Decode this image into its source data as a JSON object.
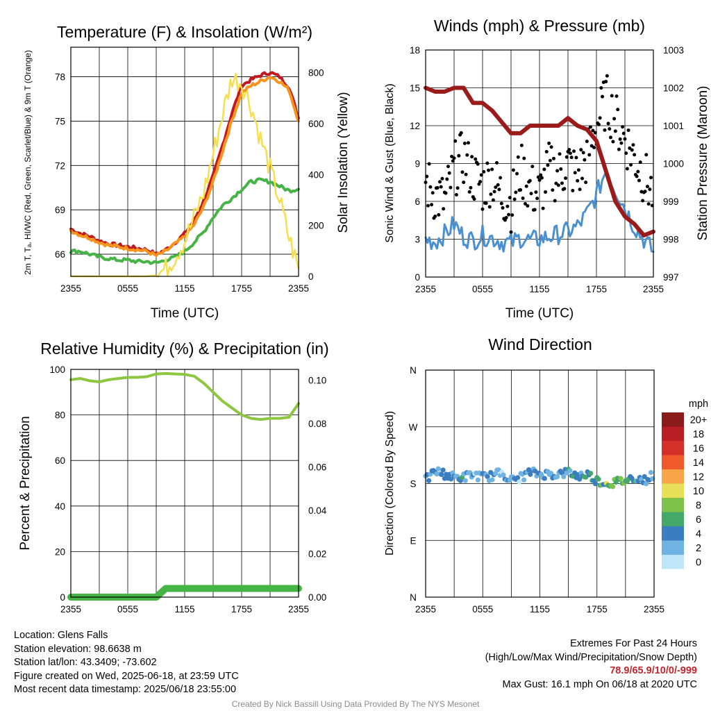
{
  "panels": {
    "temp": {
      "title": "Temperature (F) & Insolation (W/m²)",
      "ylabel": "2m T, Tₐ, HI/WC (Red, Green, Scarlet/Blue) & 9m T (Orange)",
      "y2label": "Solar Insolation (Yellow)",
      "xlabel": "Time (UTC)"
    },
    "wind": {
      "title": "Winds (mph) & Pressure (mb)",
      "ylabel": "Sonic Wind & Gust (Blue, Black)",
      "y2label": "Station Pressure (Maroon)",
      "xlabel": "Time (UTC)"
    },
    "rh": {
      "title": "Relative Humidity (%) & Precipitation (in)",
      "ylabel": "Percent & Precipitation"
    },
    "dir": {
      "title": "Wind Direction",
      "ylabel": "Direction (Colored By Speed)"
    }
  },
  "x_ticks": [
    "2355",
    "0555",
    "1155",
    "1755",
    "2355"
  ],
  "chart_data": [
    {
      "type": "line",
      "title": "Temperature (F) & Insolation (W/m2)",
      "xlabel": "Time (UTC)",
      "x": [
        0,
        1,
        2,
        3,
        4,
        5,
        6,
        7,
        8,
        9,
        10,
        11,
        12,
        13,
        14,
        15,
        16,
        17,
        18,
        19,
        20,
        21,
        22,
        23,
        24
      ],
      "ylim": [
        64.5,
        80.0
      ],
      "y_ticks": [
        66,
        69,
        72,
        75,
        78
      ],
      "y2lim": [
        0,
        900
      ],
      "y2_ticks": [
        0,
        200,
        400,
        600,
        800
      ],
      "series": [
        {
          "name": "2m T",
          "color": "#c01a1f",
          "values": [
            67.7,
            67.4,
            67.2,
            66.9,
            66.7,
            66.6,
            66.5,
            66.4,
            66.3,
            66.0,
            66.3,
            66.8,
            67.4,
            68.3,
            69.6,
            71.3,
            73.4,
            75.6,
            77.4,
            77.8,
            78.1,
            78.3,
            78.0,
            77.3,
            75.2
          ]
        },
        {
          "name": "9m T",
          "color": "#f7941d",
          "values": [
            67.6,
            67.3,
            67.1,
            66.8,
            66.6,
            66.5,
            66.4,
            66.3,
            66.2,
            65.9,
            66.2,
            66.7,
            67.2,
            68.0,
            69.2,
            70.9,
            73.0,
            75.1,
            76.9,
            77.4,
            77.7,
            78.0,
            77.7,
            77.1,
            75.0
          ]
        },
        {
          "name": "Td",
          "color": "#45b445",
          "values": [
            66.2,
            66.2,
            66.0,
            65.8,
            65.7,
            65.6,
            65.6,
            65.5,
            65.5,
            65.4,
            65.6,
            65.8,
            66.2,
            66.8,
            67.5,
            68.5,
            69.3,
            69.8,
            70.4,
            70.9,
            71.0,
            70.9,
            70.6,
            70.3,
            70.4
          ]
        },
        {
          "name": "Solar",
          "axis": "y2",
          "color": "#f6df4e",
          "values": [
            0,
            0,
            0,
            0,
            0,
            0,
            0,
            0,
            0,
            5,
            30,
            80,
            140,
            230,
            330,
            480,
            640,
            780,
            760,
            670,
            540,
            420,
            300,
            150,
            30
          ]
        }
      ]
    },
    {
      "type": "line",
      "title": "Winds (mph) & Pressure (mb)",
      "xlabel": "Time (UTC)",
      "x": [
        0,
        1,
        2,
        3,
        4,
        5,
        6,
        7,
        8,
        9,
        10,
        11,
        12,
        13,
        14,
        15,
        16,
        17,
        18,
        19,
        20,
        21,
        22,
        23,
        24
      ],
      "ylim": [
        0,
        18
      ],
      "y_ticks": [
        0,
        3,
        6,
        9,
        12,
        15,
        18
      ],
      "y2lim": [
        997,
        1003
      ],
      "y2_ticks": [
        997,
        998,
        999,
        1000,
        1001,
        1002,
        1003
      ],
      "series": [
        {
          "name": "Sonic Wind",
          "color": "#4a90d0",
          "values": [
            3.0,
            2.8,
            3.4,
            4.2,
            3.2,
            2.9,
            3.3,
            3.1,
            2.8,
            2.7,
            3.1,
            2.9,
            3.0,
            3.2,
            3.4,
            3.6,
            4.0,
            5.0,
            6.5,
            8.5,
            7.0,
            5.5,
            4.0,
            3.0,
            2.0
          ]
        },
        {
          "name": "Gust",
          "color": "#000000",
          "values": [
            7.5,
            6.5,
            6.0,
            8.5,
            9.5,
            8.0,
            7.2,
            8.0,
            6.5,
            5.8,
            8.5,
            7.0,
            6.5,
            8.5,
            8.0,
            9.0,
            8.0,
            9.5,
            12.0,
            14.0,
            12.5,
            11.0,
            9.5,
            8.0,
            6.5
          ]
        },
        {
          "name": "Pressure",
          "axis": "y2",
          "color": "#9b1b1b",
          "values": [
            1002.0,
            1001.9,
            1001.9,
            1002.0,
            1002.0,
            1001.6,
            1001.6,
            1001.4,
            1001.1,
            1000.8,
            1000.8,
            1001.0,
            1001.0,
            1001.0,
            1001.0,
            1001.2,
            1001.0,
            1000.9,
            1000.6,
            999.8,
            999.0,
            998.6,
            998.4,
            998.1,
            998.2
          ]
        }
      ]
    },
    {
      "type": "line",
      "title": "Relative Humidity (%) & Precipitation (in)",
      "xlabel": "",
      "x": [
        0,
        1,
        2,
        3,
        4,
        5,
        6,
        7,
        8,
        9,
        10,
        11,
        12,
        13,
        14,
        15,
        16,
        17,
        18,
        19,
        20,
        21,
        22,
        23,
        24
      ],
      "ylim": [
        0,
        100
      ],
      "y_ticks": [
        0,
        20,
        40,
        60,
        80,
        100
      ],
      "y2lim": [
        0,
        0.105
      ],
      "y2_ticks": [
        "0.00",
        "0.02",
        "0.04",
        "0.06",
        "0.08",
        "0.10"
      ],
      "series": [
        {
          "name": "RH",
          "color": "#8dc63f",
          "values": [
            95.5,
            96.0,
            95.0,
            94.5,
            95.5,
            96.0,
            96.5,
            96.5,
            96.8,
            98.0,
            98.2,
            98.0,
            97.8,
            97.0,
            94.0,
            90.0,
            86.0,
            83.0,
            80.0,
            78.5,
            78.0,
            78.5,
            78.5,
            79.0,
            85.0
          ]
        },
        {
          "name": "Precipitation",
          "axis": "y2",
          "color": "#45b445",
          "values": [
            0,
            0,
            0,
            0,
            0,
            0,
            0,
            0,
            0,
            0,
            0.004,
            0.004,
            0.004,
            0.004,
            0.004,
            0.004,
            0.004,
            0.004,
            0.004,
            0.004,
            0.004,
            0.004,
            0.004,
            0.004,
            0.004
          ]
        }
      ]
    },
    {
      "type": "scatter",
      "title": "Wind Direction",
      "xlabel": "",
      "y_ticks": [
        "N",
        "E",
        "S",
        "W",
        "N"
      ],
      "ylim_degrees": [
        0,
        360
      ],
      "colorbar": {
        "unit": "mph",
        "labels": [
          "20+",
          "18",
          "16",
          "14",
          "12",
          "10",
          "8",
          "6",
          "4",
          "2",
          "0"
        ],
        "colors": [
          "#8b1a1a",
          "#b81f24",
          "#d5302a",
          "#ee5a2b",
          "#f7a548",
          "#e6df57",
          "#7fc24b",
          "#44a86a",
          "#3a7ec0",
          "#6fb3e3",
          "#bfe6f8"
        ]
      },
      "x": [
        0,
        1,
        2,
        3,
        4,
        5,
        6,
        7,
        8,
        9,
        10,
        11,
        12,
        13,
        14,
        15,
        16,
        17,
        18,
        19,
        20,
        21,
        22,
        23,
        24
      ],
      "direction_deg": [
        185,
        200,
        195,
        190,
        190,
        195,
        190,
        192,
        198,
        185,
        190,
        198,
        195,
        195,
        195,
        198,
        192,
        195,
        185,
        180,
        182,
        185,
        190,
        185,
        195
      ],
      "speed_mph": [
        3,
        3,
        4,
        4,
        3,
        2,
        3,
        3,
        2,
        2,
        3,
        3,
        3,
        3,
        3,
        4,
        4,
        5,
        6,
        8,
        6,
        5,
        4,
        3,
        2
      ]
    }
  ],
  "footer_left": {
    "location": "Location: Glens Falls",
    "elevation": "Station elevation: 98.6638 m",
    "latlon": "Station lat/lon: 43.3409; -73.602",
    "created": "Figure created on Wed, 2025-06-18, at 23:59 UTC",
    "recent": "Most recent data timestamp: 2025/06/18 23:55:00"
  },
  "footer_right": {
    "header": "Extremes For Past 24 Hours",
    "subheader": "(High/Low/Max Wind/Precipitation/Snow Depth)",
    "values": "78.9/65.9/10/0/-999",
    "gust": "Max Gust: 16.1 mph On 06/18 at 2020 UTC"
  },
  "credit": "Created By Nick Bassill Using Data Provided By The NYS Mesonet"
}
